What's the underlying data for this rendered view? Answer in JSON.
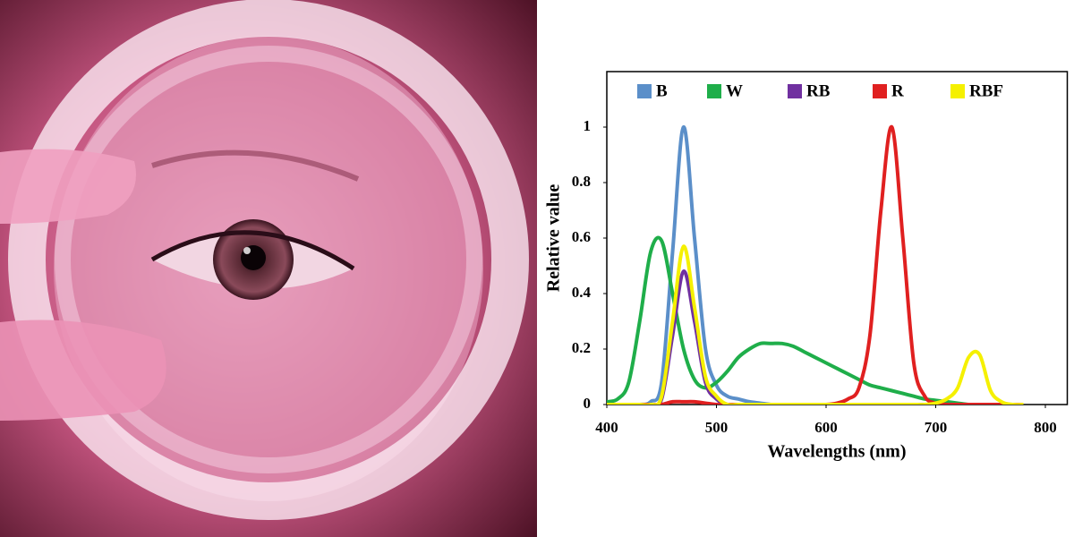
{
  "chart_data": {
    "type": "line",
    "x_label": "Wavelengths (nm)",
    "y_label": "Relative value",
    "x": [
      400,
      410,
      420,
      430,
      440,
      450,
      460,
      470,
      480,
      490,
      500,
      510,
      520,
      530,
      540,
      550,
      560,
      570,
      580,
      590,
      600,
      610,
      620,
      630,
      640,
      650,
      660,
      670,
      680,
      690,
      700,
      710,
      720,
      730,
      740,
      750,
      760,
      770,
      780
    ],
    "series": [
      {
        "name": "B",
        "color": "#5b8fc9",
        "values": [
          0,
          0,
          0,
          0,
          0.01,
          0.08,
          0.55,
          1.0,
          0.6,
          0.2,
          0.07,
          0.03,
          0.02,
          0.01,
          0.005,
          0,
          0,
          0,
          0,
          0,
          0,
          0,
          0,
          0,
          0,
          0,
          0,
          0,
          0,
          0,
          0,
          0,
          0,
          0,
          0,
          0,
          0,
          0,
          0
        ]
      },
      {
        "name": "W",
        "color": "#1fae4a",
        "values": [
          0.01,
          0.02,
          0.08,
          0.3,
          0.55,
          0.59,
          0.4,
          0.2,
          0.09,
          0.06,
          0.08,
          0.12,
          0.17,
          0.2,
          0.22,
          0.22,
          0.22,
          0.21,
          0.19,
          0.17,
          0.15,
          0.13,
          0.11,
          0.09,
          0.07,
          0.06,
          0.05,
          0.04,
          0.03,
          0.02,
          0.015,
          0.01,
          0.005,
          0,
          0,
          0,
          0,
          0,
          0
        ]
      },
      {
        "name": "RB",
        "color": "#7030a0",
        "values": [
          0,
          0,
          0,
          0,
          0,
          0.02,
          0.25,
          0.48,
          0.3,
          0.08,
          0.02,
          0,
          0,
          0,
          0,
          0,
          0,
          0,
          0,
          0,
          0,
          0,
          0,
          0,
          0,
          0,
          0,
          0,
          0,
          0,
          0,
          0,
          0,
          0,
          0,
          0,
          0,
          0,
          0
        ]
      },
      {
        "name": "R",
        "color": "#e02020",
        "values": [
          0,
          0,
          0,
          0,
          0,
          0,
          0.01,
          0.01,
          0.01,
          0.005,
          0,
          0,
          0,
          0,
          0,
          0,
          0,
          0,
          0,
          0,
          0,
          0.005,
          0.02,
          0.06,
          0.25,
          0.7,
          1.0,
          0.6,
          0.15,
          0.03,
          0.005,
          0,
          0,
          0,
          0,
          0,
          0,
          0,
          0
        ]
      },
      {
        "name": "RBF",
        "color": "#f5f000",
        "values": [
          0,
          0,
          0,
          0,
          0,
          0.03,
          0.3,
          0.57,
          0.35,
          0.1,
          0.03,
          0,
          0,
          0,
          0,
          0,
          0,
          0,
          0,
          0,
          0,
          0,
          0,
          0,
          0,
          0,
          0,
          0,
          0,
          0,
          0.005,
          0.02,
          0.06,
          0.17,
          0.18,
          0.05,
          0.01,
          0,
          0
        ]
      }
    ],
    "xlim": [
      400,
      820
    ],
    "ylim": [
      0,
      1.2
    ],
    "xticks": [
      400,
      500,
      600,
      700,
      800
    ],
    "yticks": [
      0,
      0.2,
      0.4,
      0.6,
      0.8,
      1
    ],
    "grid": false,
    "legend": "top"
  }
}
